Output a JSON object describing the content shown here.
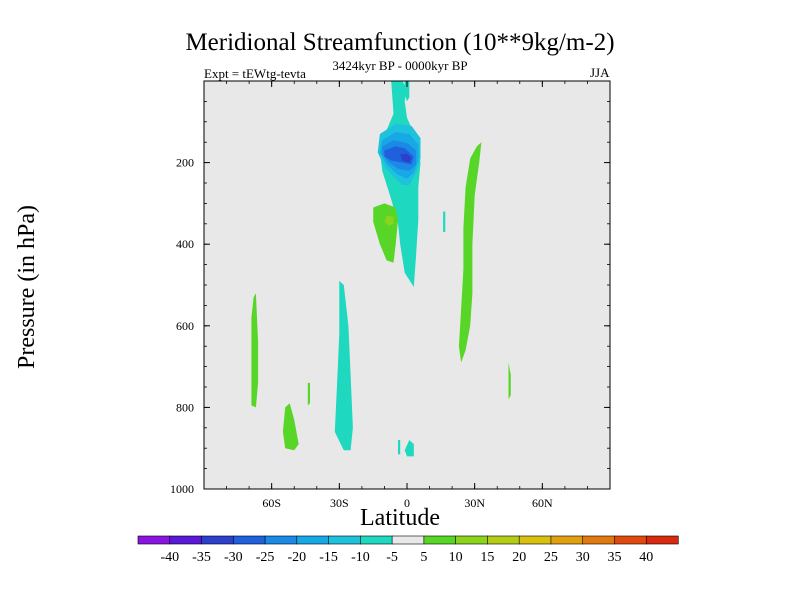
{
  "chart_data": {
    "type": "heatmap",
    "title": "Meridional Streamfunction (10**9kg/m-2)",
    "subtitle": "3424kyr BP - 0000kyr BP",
    "left_label": "Expt = tEWtg-tevta",
    "right_label": "JJA",
    "xlabel": "Latitude",
    "ylabel": "Pressure (in hPa)",
    "xlim": [
      -90,
      90
    ],
    "ylim": [
      1000,
      0
    ],
    "x_ticks": [
      {
        "value": -60,
        "label": "60S"
      },
      {
        "value": -30,
        "label": "30S"
      },
      {
        "value": 0,
        "label": "0"
      },
      {
        "value": 30,
        "label": "30N"
      },
      {
        "value": 60,
        "label": "60N"
      }
    ],
    "y_ticks": [
      {
        "value": 200,
        "label": "200"
      },
      {
        "value": 400,
        "label": "400"
      },
      {
        "value": 600,
        "label": "600"
      },
      {
        "value": 800,
        "label": "800"
      },
      {
        "value": 1000,
        "label": "1000"
      }
    ],
    "colorbar": {
      "labels": [
        "-40",
        "-35",
        "-30",
        "-25",
        "-20",
        "-15",
        "-10",
        "-5",
        "5",
        "10",
        "15",
        "20",
        "25",
        "30",
        "35",
        "40"
      ],
      "colors": [
        "#8a14e0",
        "#5a18d8",
        "#2c40cc",
        "#1f60dc",
        "#1b8ae6",
        "#18a8e6",
        "#1ec2dc",
        "#1ed8c0",
        "#e8e8e8",
        "#58d628",
        "#8cd41c",
        "#b4cc16",
        "#d8c010",
        "#e0a010",
        "#e07a10",
        "#e04a10",
        "#d82a10"
      ]
    },
    "regions": [
      {
        "level": "-5",
        "color": "#1ed8c0",
        "points": [
          [
            -7,
            0
          ],
          [
            -6,
            80
          ],
          [
            -9,
            120
          ],
          [
            -12,
            170
          ],
          [
            -11,
            220
          ],
          [
            -7,
            290
          ],
          [
            -4,
            350
          ],
          [
            -3,
            400
          ],
          [
            -1,
            470
          ],
          [
            3,
            505
          ],
          [
            4,
            430
          ],
          [
            5,
            340
          ],
          [
            5,
            260
          ],
          [
            6,
            200
          ],
          [
            4,
            140
          ],
          [
            0,
            90
          ],
          [
            -1,
            50
          ],
          [
            0,
            20
          ],
          [
            -2,
            0
          ]
        ]
      },
      {
        "level": "-5",
        "color": "#1ed8c0",
        "points": [
          [
            -1,
            0
          ],
          [
            1,
            0
          ],
          [
            1,
            40
          ],
          [
            0,
            50
          ],
          [
            -1,
            30
          ]
        ]
      },
      {
        "level": "-5",
        "color": "#1ed8c0",
        "points": [
          [
            -30,
            490
          ],
          [
            -28,
            500
          ],
          [
            -26,
            600
          ],
          [
            -25,
            720
          ],
          [
            -24,
            850
          ],
          [
            -25,
            905
          ],
          [
            -28,
            905
          ],
          [
            -32,
            860
          ],
          [
            -31,
            740
          ],
          [
            -30,
            620
          ]
        ]
      },
      {
        "level": "-5",
        "color": "#1ed8c0",
        "points": [
          [
            1,
            880
          ],
          [
            3,
            890
          ],
          [
            3,
            920
          ],
          [
            0,
            920
          ],
          [
            -1,
            905
          ]
        ]
      },
      {
        "level": "-5",
        "color": "#1ed8c0",
        "points": [
          [
            -4,
            880
          ],
          [
            -3,
            880
          ],
          [
            -3,
            915
          ],
          [
            -4,
            915
          ]
        ]
      },
      {
        "level": "-10",
        "color": "#1ec2dc",
        "points": [
          [
            -12,
            130
          ],
          [
            -5,
            105
          ],
          [
            2,
            110
          ],
          [
            6,
            140
          ],
          [
            6,
            190
          ],
          [
            4,
            225
          ],
          [
            1,
            255
          ],
          [
            -2,
            255
          ],
          [
            -6,
            235
          ],
          [
            -10,
            210
          ],
          [
            -13,
            175
          ]
        ]
      },
      {
        "level": "-15",
        "color": "#18a8e6",
        "points": [
          [
            -11,
            145
          ],
          [
            -5,
            125
          ],
          [
            1,
            130
          ],
          [
            5,
            155
          ],
          [
            5,
            195
          ],
          [
            3,
            225
          ],
          [
            0,
            240
          ],
          [
            -4,
            230
          ],
          [
            -9,
            205
          ],
          [
            -12,
            175
          ]
        ]
      },
      {
        "level": "-20",
        "color": "#1b8ae6",
        "points": [
          [
            -11,
            160
          ],
          [
            -6,
            145
          ],
          [
            0,
            152
          ],
          [
            4,
            170
          ],
          [
            4,
            205
          ],
          [
            1,
            220
          ],
          [
            -4,
            215
          ],
          [
            -8,
            200
          ],
          [
            -11,
            180
          ]
        ]
      },
      {
        "level": "-25",
        "color": "#1f60dc",
        "points": [
          [
            -10,
            170
          ],
          [
            -5,
            160
          ],
          [
            -1,
            165
          ],
          [
            3,
            185
          ],
          [
            2,
            205
          ],
          [
            -2,
            200
          ],
          [
            -7,
            195
          ],
          [
            -10,
            185
          ]
        ]
      },
      {
        "level": "-30",
        "color": "#2c40cc",
        "points": [
          [
            -3,
            180
          ],
          [
            0,
            178
          ],
          [
            2,
            188
          ],
          [
            1,
            200
          ],
          [
            -2,
            195
          ]
        ]
      },
      {
        "level": "5",
        "color": "#58d628",
        "points": [
          [
            -15,
            310
          ],
          [
            -10,
            300
          ],
          [
            -5,
            310
          ],
          [
            -4,
            340
          ],
          [
            -5,
            400
          ],
          [
            -6,
            445
          ],
          [
            -9,
            440
          ],
          [
            -12,
            400
          ],
          [
            -15,
            345
          ]
        ]
      },
      {
        "level": "10",
        "color": "#8cd41c",
        "points": [
          [
            -9,
            330
          ],
          [
            -6,
            332
          ],
          [
            -6,
            350
          ],
          [
            -8,
            355
          ],
          [
            -10,
            345
          ]
        ]
      },
      {
        "level": "5",
        "color": "#58d628",
        "points": [
          [
            31,
            160
          ],
          [
            33,
            150
          ],
          [
            32,
            200
          ],
          [
            30,
            280
          ],
          [
            29,
            400
          ],
          [
            29,
            520
          ],
          [
            28,
            600
          ],
          [
            26,
            660
          ],
          [
            24,
            690
          ],
          [
            23,
            650
          ],
          [
            24,
            560
          ],
          [
            25,
            460
          ],
          [
            25,
            360
          ],
          [
            26,
            260
          ],
          [
            28,
            190
          ]
        ]
      },
      {
        "level": "5",
        "color": "#58d628",
        "points": [
          [
            -68,
            530
          ],
          [
            -67,
            520
          ],
          [
            -66,
            640
          ],
          [
            -66,
            740
          ],
          [
            -67,
            800
          ],
          [
            -69,
            795
          ],
          [
            -69,
            680
          ],
          [
            -69,
            580
          ]
        ]
      },
      {
        "level": "5",
        "color": "#58d628",
        "points": [
          [
            -54,
            800
          ],
          [
            -52,
            790
          ],
          [
            -50,
            830
          ],
          [
            -48,
            890
          ],
          [
            -50,
            905
          ],
          [
            -54,
            900
          ],
          [
            -55,
            860
          ]
        ]
      },
      {
        "level": "5",
        "color": "#58d628",
        "points": [
          [
            -44,
            740
          ],
          [
            -43,
            740
          ],
          [
            -43,
            790
          ],
          [
            -44,
            795
          ]
        ]
      },
      {
        "level": "5",
        "color": "#58d628",
        "points": [
          [
            45,
            690
          ],
          [
            46,
            720
          ],
          [
            46,
            770
          ],
          [
            45,
            780
          ]
        ]
      },
      {
        "level": "-5",
        "color": "#1ed8c0",
        "points": [
          [
            16,
            320
          ],
          [
            17,
            320
          ],
          [
            17,
            370
          ],
          [
            16,
            370
          ]
        ]
      }
    ]
  }
}
